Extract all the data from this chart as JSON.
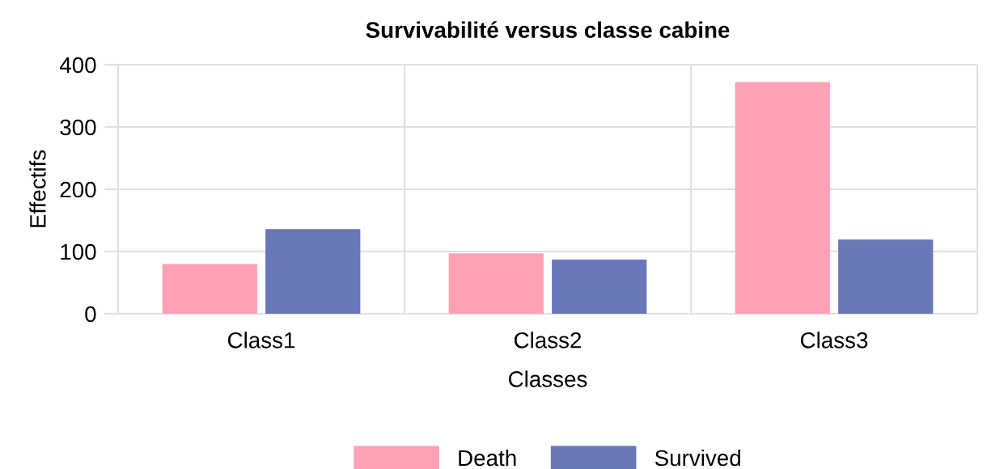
{
  "chart_data": {
    "type": "bar",
    "title": "Survivabilité versus classe cabine",
    "xlabel": "Classes",
    "ylabel": "Effectifs",
    "categories": [
      "Class1",
      "Class2",
      "Class3"
    ],
    "series": [
      {
        "name": "Death",
        "color": "#ffa1b5",
        "values": [
          80,
          97,
          372
        ]
      },
      {
        "name": "Survived",
        "color": "#6878b9",
        "values": [
          136,
          87,
          119
        ]
      }
    ],
    "ylim": [
      0,
      400
    ],
    "yticks": [
      0,
      100,
      200,
      300,
      400
    ],
    "grid": true,
    "legend": "bottom"
  }
}
